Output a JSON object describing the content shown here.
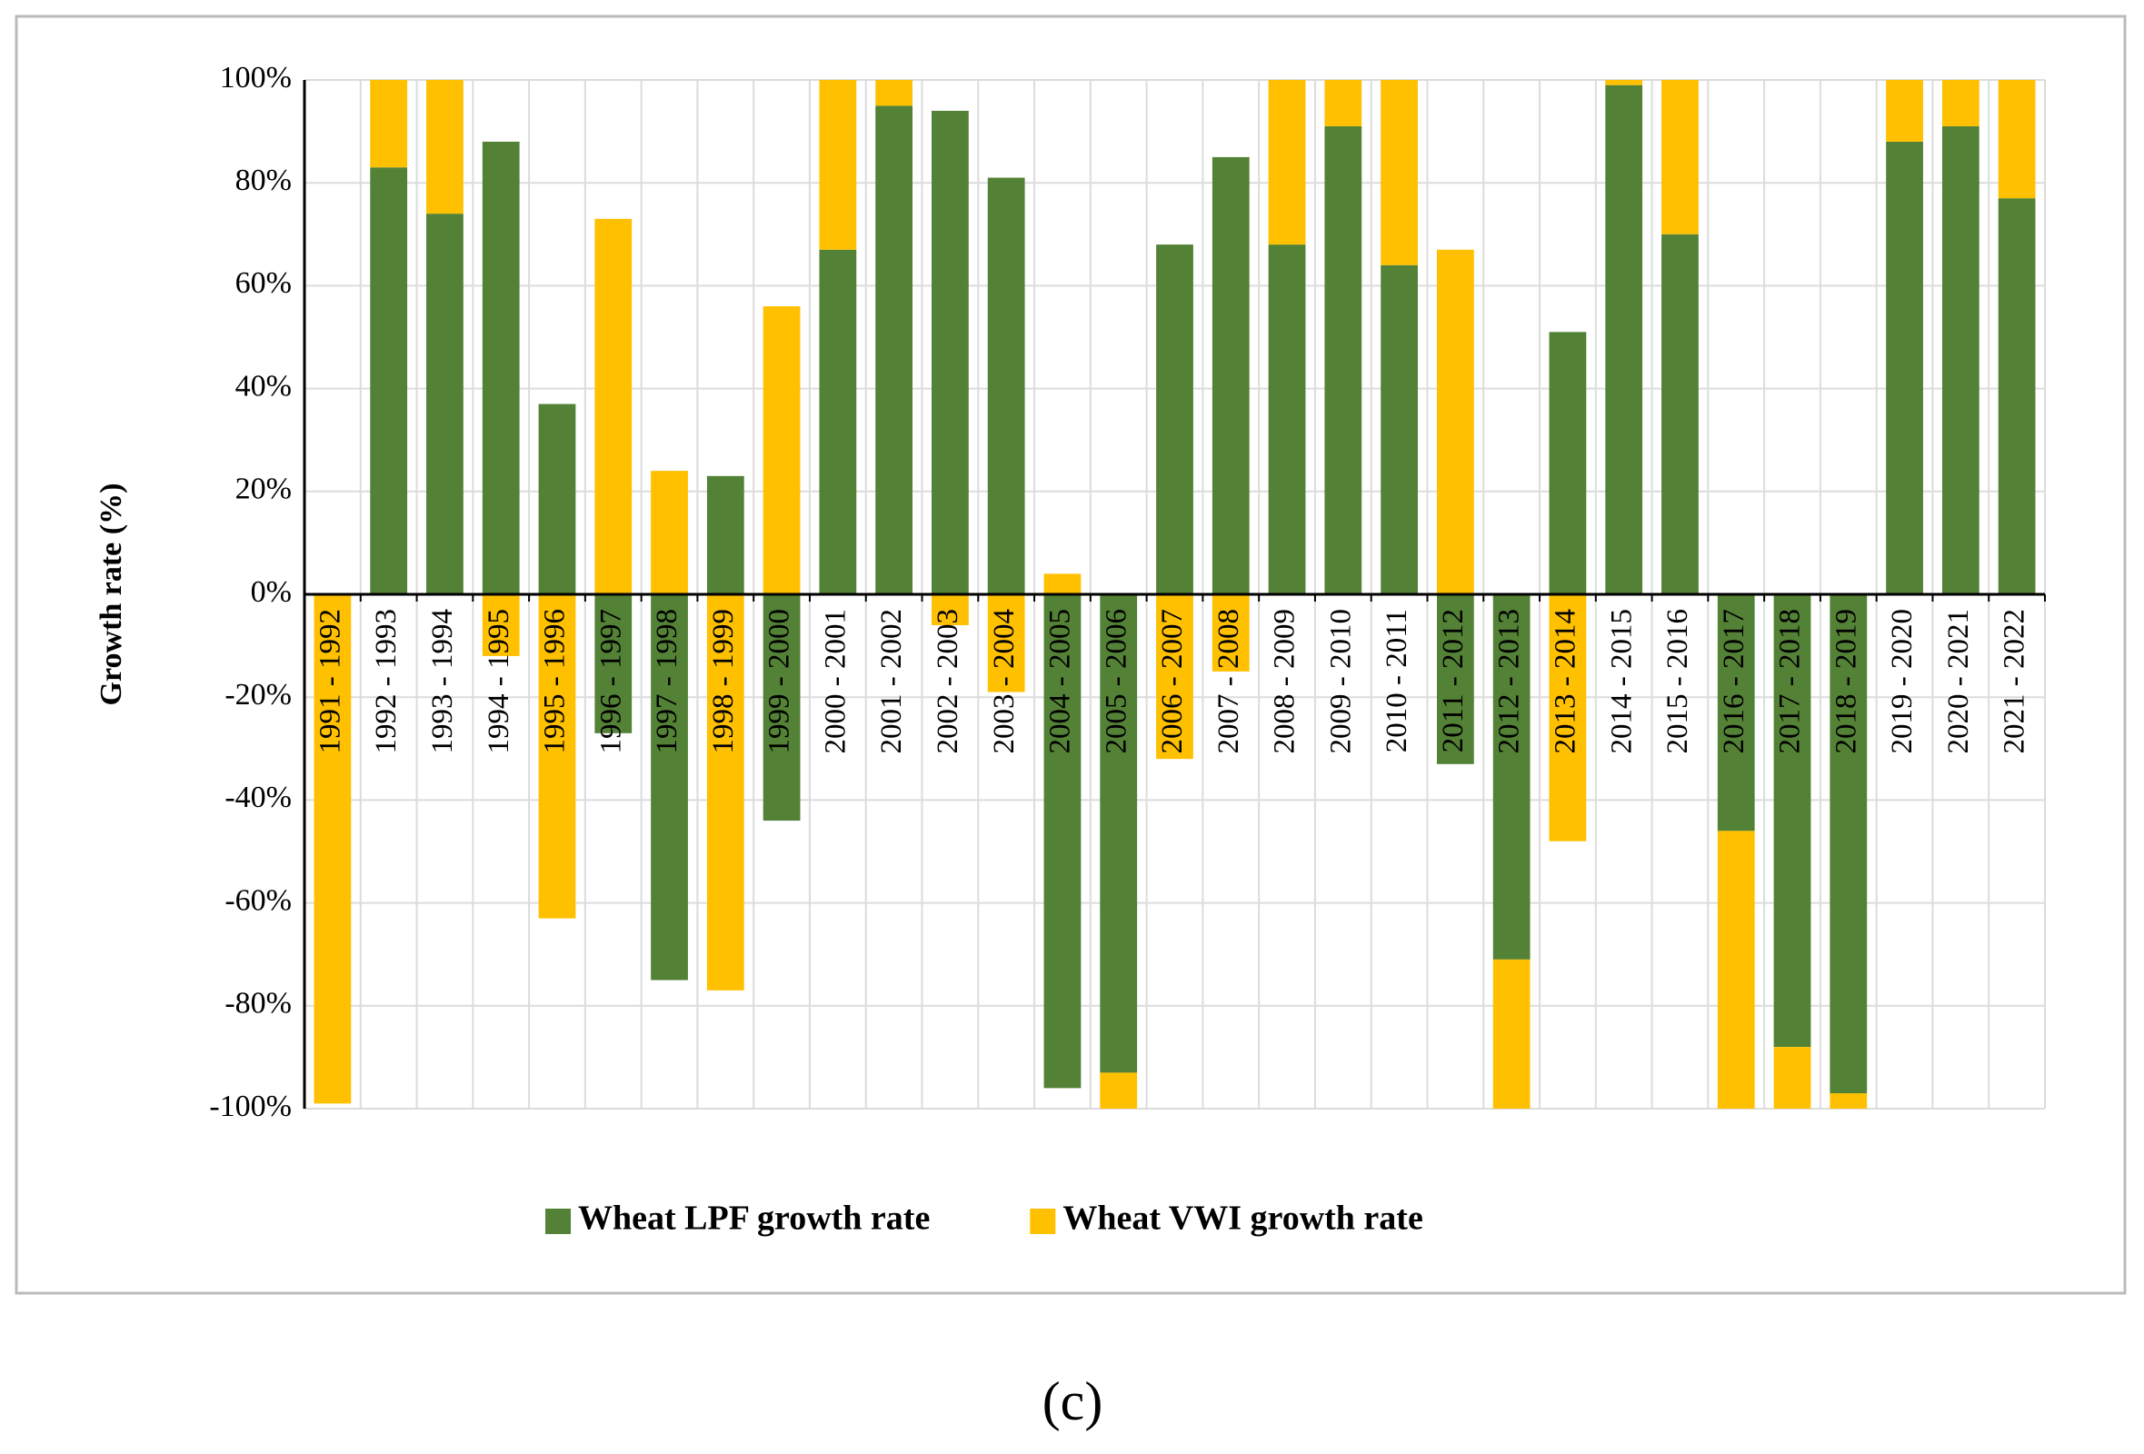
{
  "chart_data": {
    "type": "stacked_bar",
    "ylabel": "Growth rate (%)",
    "caption": "(c)",
    "categories": [
      "1991 - 1992",
      "1992 - 1993",
      "1993 - 1994",
      "1994 - 1995",
      "1995 - 1996",
      "1996 - 1997",
      "1997 - 1998",
      "1998 - 1999",
      "1999 - 2000",
      "2000 - 2001",
      "2001 - 2002",
      "2002 - 2003",
      "2003 - 2004",
      "2004 - 2005",
      "2005 - 2006",
      "2006 - 2007",
      "2007 - 2008",
      "2008 - 2009",
      "2009 - 2010",
      "2010 - 2011",
      "2011 - 2012",
      "2012 - 2013",
      "2013 - 2014",
      "2014 - 2015",
      "2015 - 2016",
      "2016 - 2017",
      "2017 - 2018",
      "2018 - 2019",
      "2019 - 2020",
      "2020 - 2021",
      "2021 - 2022"
    ],
    "series": [
      {
        "name": "Wheat LPF growth rate",
        "color": "#538135",
        "values": [
          0,
          83,
          74,
          88,
          37,
          -27,
          -75,
          23,
          -44,
          67,
          95,
          94,
          81,
          -96,
          -93,
          68,
          85,
          68,
          91,
          64,
          -33,
          -71,
          51,
          99,
          70,
          -46,
          -88,
          -97,
          88,
          91,
          77
        ]
      },
      {
        "name": "Wheat VWI growth rate",
        "color": "#ffc000",
        "values": [
          -99,
          17,
          26,
          -12,
          -63,
          73,
          24,
          -77,
          56,
          33,
          5,
          -6,
          -19,
          4,
          -7,
          -32,
          -15,
          32,
          9,
          36,
          67,
          -29,
          -48,
          1,
          30,
          -54,
          -12,
          -3,
          12,
          9,
          23
        ]
      }
    ],
    "ylim": [
      -100,
      100
    ],
    "yticks": [
      {
        "value": -100,
        "label": "-100%"
      },
      {
        "value": -80,
        "label": "-80%"
      },
      {
        "value": -60,
        "label": "-60%"
      },
      {
        "value": -40,
        "label": "-40%"
      },
      {
        "value": -20,
        "label": "-20%"
      },
      {
        "value": 0,
        "label": "0%"
      },
      {
        "value": 20,
        "label": "20%"
      },
      {
        "value": 40,
        "label": "40%"
      },
      {
        "value": 60,
        "label": "60%"
      },
      {
        "value": 80,
        "label": "80%"
      },
      {
        "value": 100,
        "label": "100%"
      }
    ],
    "grid": true,
    "legend": "bottom"
  }
}
